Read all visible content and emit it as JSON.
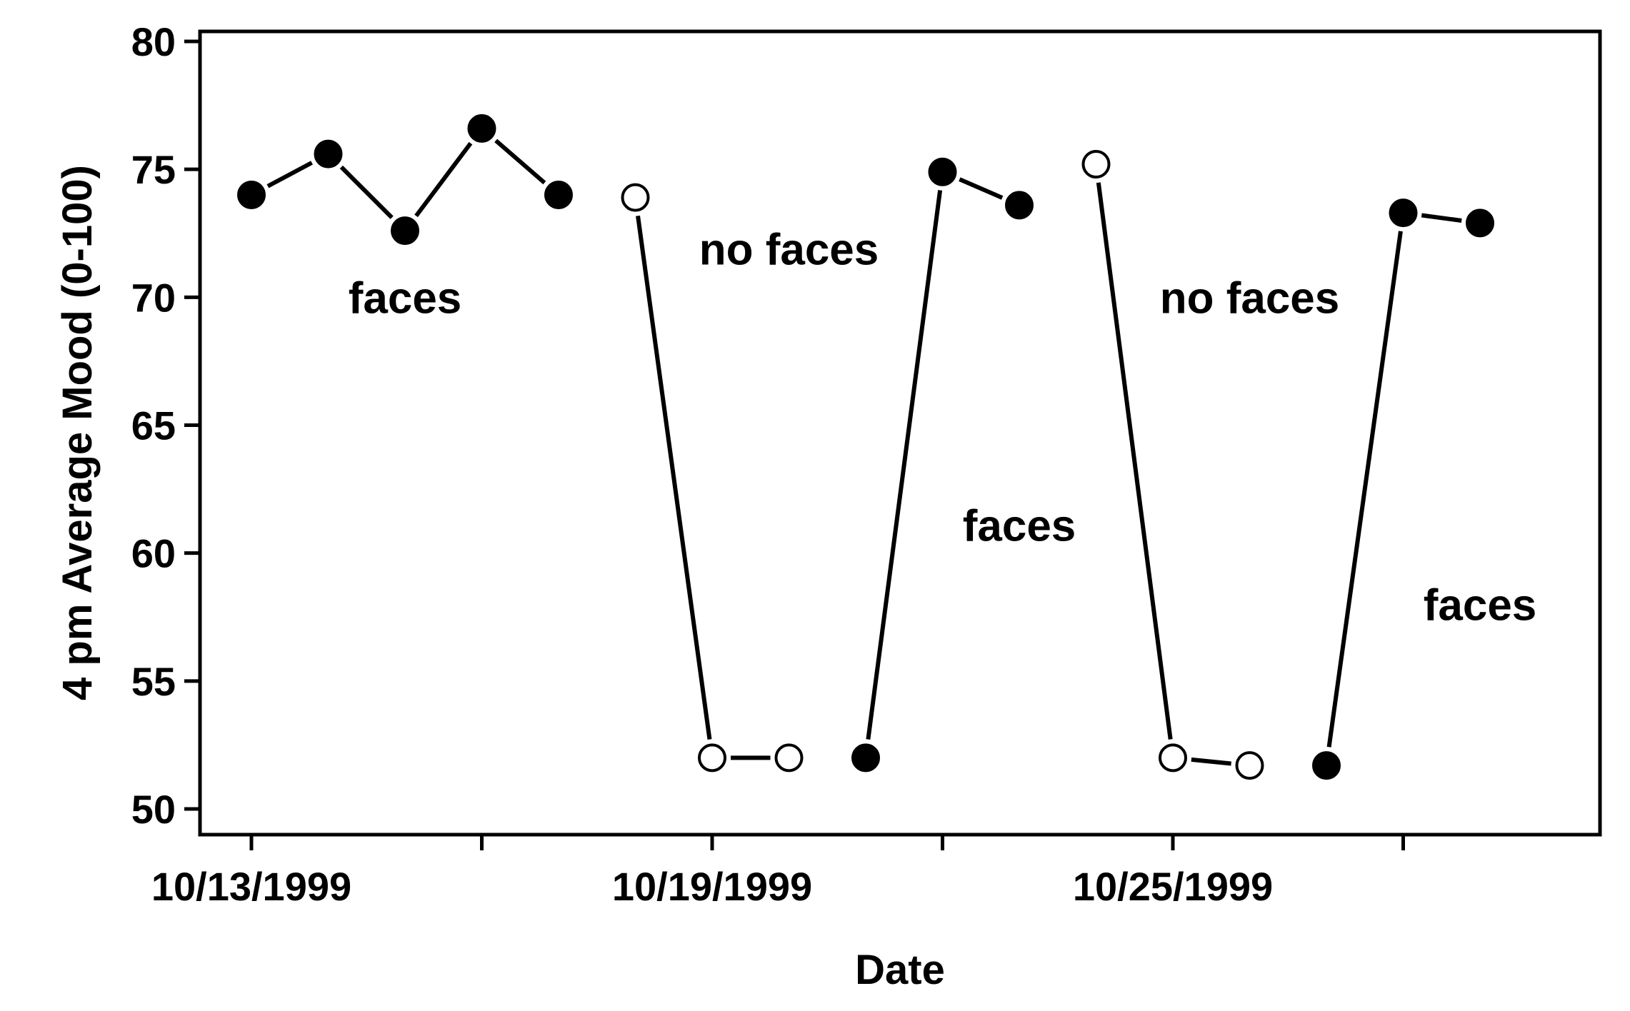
{
  "chart_data": {
    "type": "line",
    "title": "",
    "xlabel": "Date",
    "ylabel": "4 pm Average Mood (0-100)",
    "ylim": [
      50,
      80
    ],
    "yticks": [
      "50",
      "55",
      "60",
      "65",
      "70",
      "75",
      "80"
    ],
    "x_start": "10/13/1999",
    "xticks": [
      {
        "date": "10/13/1999",
        "label": "10/13/1999"
      },
      {
        "date": "10/16/1999",
        "label": ""
      },
      {
        "date": "10/19/1999",
        "label": "10/19/1999"
      },
      {
        "date": "10/22/1999",
        "label": ""
      },
      {
        "date": "10/25/1999",
        "label": "10/25/1999"
      },
      {
        "date": "10/28/1999",
        "label": ""
      }
    ],
    "xlim": [
      "10/13/1999",
      "10/30/1999"
    ],
    "grid": false,
    "legend": "none",
    "segments": [
      {
        "condition": "faces",
        "marker": "filled",
        "points": [
          {
            "x": "10/13/1999",
            "y": 74.0
          },
          {
            "x": "10/14/1999",
            "y": 75.6
          },
          {
            "x": "10/15/1999",
            "y": 72.6
          },
          {
            "x": "10/16/1999",
            "y": 76.6
          },
          {
            "x": "10/17/1999",
            "y": 74.0
          }
        ]
      },
      {
        "condition": "no faces",
        "marker": "open",
        "points": [
          {
            "x": "10/18/1999",
            "y": 73.9
          },
          {
            "x": "10/19/1999",
            "y": 52.0
          },
          {
            "x": "10/20/1999",
            "y": 52.0
          }
        ]
      },
      {
        "condition": "faces",
        "marker": "filled",
        "points": [
          {
            "x": "10/21/1999",
            "y": 52.0
          },
          {
            "x": "10/22/1999",
            "y": 74.9
          },
          {
            "x": "10/23/1999",
            "y": 73.6
          }
        ]
      },
      {
        "condition": "no faces",
        "marker": "open",
        "points": [
          {
            "x": "10/24/1999",
            "y": 75.2
          },
          {
            "x": "10/25/1999",
            "y": 52.0
          },
          {
            "x": "10/26/1999",
            "y": 51.7
          }
        ]
      },
      {
        "condition": "faces",
        "marker": "filled",
        "points": [
          {
            "x": "10/27/1999",
            "y": 51.7
          },
          {
            "x": "10/28/1999",
            "y": 73.3
          },
          {
            "x": "10/29/1999",
            "y": 72.9
          }
        ]
      }
    ],
    "annotations": [
      {
        "text": "faces",
        "x": "10/15/1999",
        "y": 70.0
      },
      {
        "text": "no faces",
        "x": "10/20/1999",
        "y": 71.9
      },
      {
        "text": "faces",
        "x": "10/23/1999",
        "y": 61.1
      },
      {
        "text": "no faces",
        "x": "10/26/1999",
        "y": 70.0
      },
      {
        "text": "faces",
        "x": "10/29/1999",
        "y": 58.0
      }
    ]
  }
}
